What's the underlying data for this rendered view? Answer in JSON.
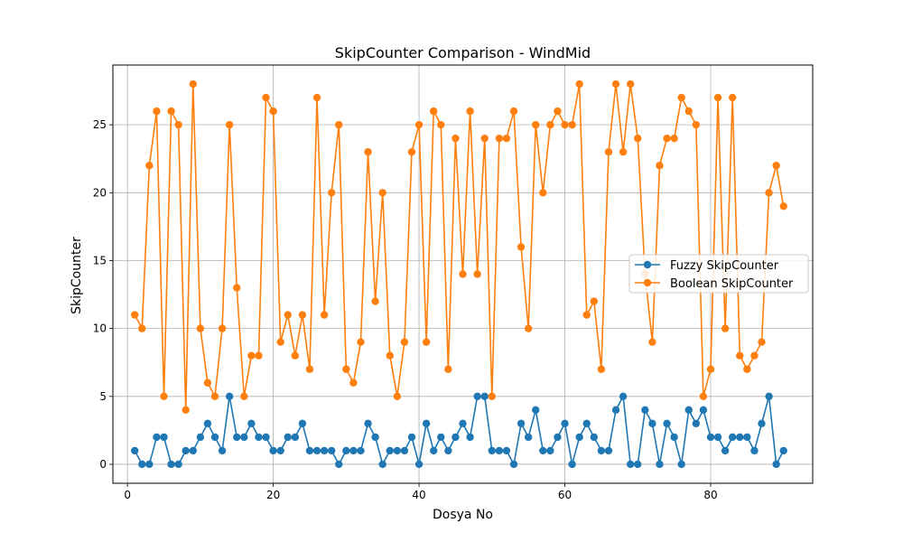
{
  "chart_data": {
    "type": "line",
    "title": "SkipCounter Comparison - WindMid",
    "xlabel": "Dosya No",
    "ylabel": "SkipCounter",
    "xlim": [
      -2,
      94
    ],
    "ylim": [
      -1.4,
      29.4
    ],
    "xticks": [
      0,
      20,
      40,
      60,
      80
    ],
    "yticks": [
      0,
      5,
      10,
      15,
      20,
      25
    ],
    "grid": true,
    "legend_position": "center-right",
    "x": [
      1,
      2,
      3,
      4,
      5,
      6,
      7,
      8,
      9,
      10,
      11,
      12,
      13,
      14,
      15,
      16,
      17,
      18,
      19,
      20,
      21,
      22,
      23,
      24,
      25,
      26,
      27,
      28,
      29,
      30,
      31,
      32,
      33,
      34,
      35,
      36,
      37,
      38,
      39,
      40,
      41,
      42,
      43,
      44,
      45,
      46,
      47,
      48,
      49,
      50,
      51,
      52,
      53,
      54,
      55,
      56,
      57,
      58,
      59,
      60,
      61,
      62,
      63,
      64,
      65,
      66,
      67,
      68,
      69,
      70,
      71,
      72,
      73,
      74,
      75,
      76,
      77,
      78,
      79,
      80,
      81,
      82,
      83,
      84,
      85,
      86,
      87,
      88,
      89,
      90
    ],
    "series": [
      {
        "name": "Fuzzy SkipCounter",
        "color": "#1f77b4",
        "values": [
          1,
          0,
          0,
          2,
          2,
          0,
          0,
          1,
          1,
          2,
          3,
          2,
          1,
          5,
          2,
          2,
          3,
          2,
          2,
          1,
          1,
          2,
          2,
          3,
          1,
          1,
          1,
          1,
          0,
          1,
          1,
          1,
          3,
          2,
          0,
          1,
          1,
          1,
          2,
          0,
          3,
          1,
          2,
          1,
          2,
          3,
          2,
          5,
          5,
          1,
          1,
          1,
          0,
          3,
          2,
          4,
          1,
          1,
          2,
          3,
          0,
          2,
          3,
          2,
          1,
          1,
          4,
          5,
          0,
          0,
          4,
          3,
          0,
          3,
          2,
          0,
          4,
          3,
          4,
          2,
          2,
          1,
          2,
          2,
          2,
          1,
          3,
          5,
          0,
          1
        ]
      },
      {
        "name": "Boolean SkipCounter",
        "color": "#ff7f0e",
        "values": [
          11,
          10,
          22,
          26,
          5,
          26,
          25,
          4,
          28,
          10,
          6,
          5,
          10,
          25,
          13,
          5,
          8,
          8,
          27,
          26,
          9,
          11,
          8,
          11,
          7,
          27,
          11,
          20,
          25,
          7,
          6,
          9,
          23,
          12,
          20,
          8,
          5,
          9,
          23,
          25,
          9,
          26,
          25,
          7,
          24,
          14,
          26,
          14,
          24,
          5,
          24,
          24,
          26,
          16,
          10,
          25,
          20,
          25,
          26,
          25,
          25,
          28,
          11,
          12,
          7,
          23,
          28,
          23,
          28,
          24,
          14,
          9,
          22,
          24,
          24,
          27,
          26,
          25,
          5,
          7,
          27,
          10,
          27,
          8,
          7,
          8,
          9,
          20,
          22,
          19
        ]
      }
    ]
  }
}
